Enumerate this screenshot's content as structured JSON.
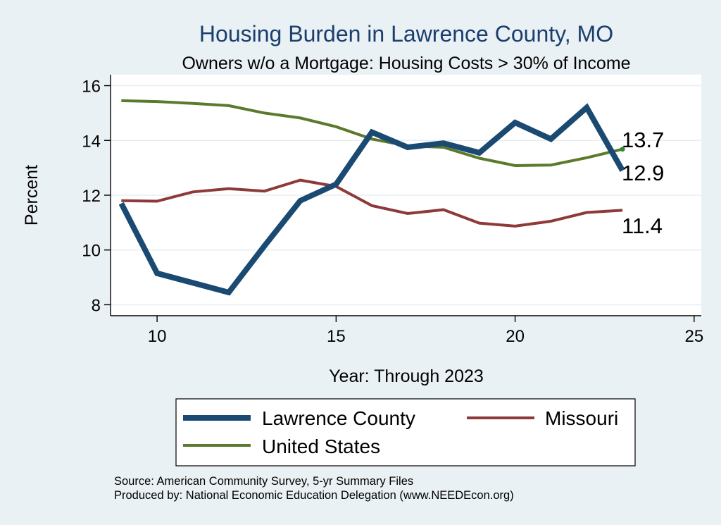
{
  "chart_data": {
    "type": "line",
    "title": "Housing Burden in Lawrence County, MO",
    "subtitle": "Owners w/o a Mortgage: Housing Costs > 30% of Income",
    "xlabel": "Year: Through 2023",
    "ylabel": "Percent",
    "xlim": [
      8.7,
      25.2
    ],
    "ylim": [
      7.6,
      16.4
    ],
    "xticks": [
      10,
      15,
      20,
      25
    ],
    "yticks": [
      8,
      10,
      12,
      14,
      16
    ],
    "x": [
      9,
      10,
      11,
      12,
      13,
      14,
      15,
      16,
      17,
      18,
      19,
      20,
      21,
      22,
      23
    ],
    "series": [
      {
        "name": "Lawrence County",
        "color": "#1a4a72",
        "values": [
          11.7,
          9.15,
          8.8,
          8.45,
          10.15,
          11.8,
          12.4,
          14.3,
          13.75,
          13.9,
          13.55,
          14.65,
          14.05,
          15.2,
          12.9
        ],
        "end_label": "12.9"
      },
      {
        "name": "Missouri",
        "color": "#8e3a3a",
        "values": [
          11.8,
          11.78,
          12.12,
          12.24,
          12.15,
          12.55,
          12.32,
          11.62,
          11.33,
          11.47,
          10.98,
          10.87,
          11.05,
          11.37,
          11.45
        ],
        "end_label": "11.4"
      },
      {
        "name": "United States",
        "color": "#5b7a2c",
        "values": [
          15.45,
          15.42,
          15.35,
          15.27,
          15.0,
          14.82,
          14.5,
          14.05,
          13.8,
          13.75,
          13.35,
          13.08,
          13.1,
          13.37,
          13.68
        ],
        "end_label": "13.7"
      }
    ],
    "legend_position": "bottom",
    "notes": [
      "Source: American Community Survey, 5-yr Summary Files",
      "Produced by: National Economic Education Delegation (www.NEEDEcon.org)"
    ]
  }
}
